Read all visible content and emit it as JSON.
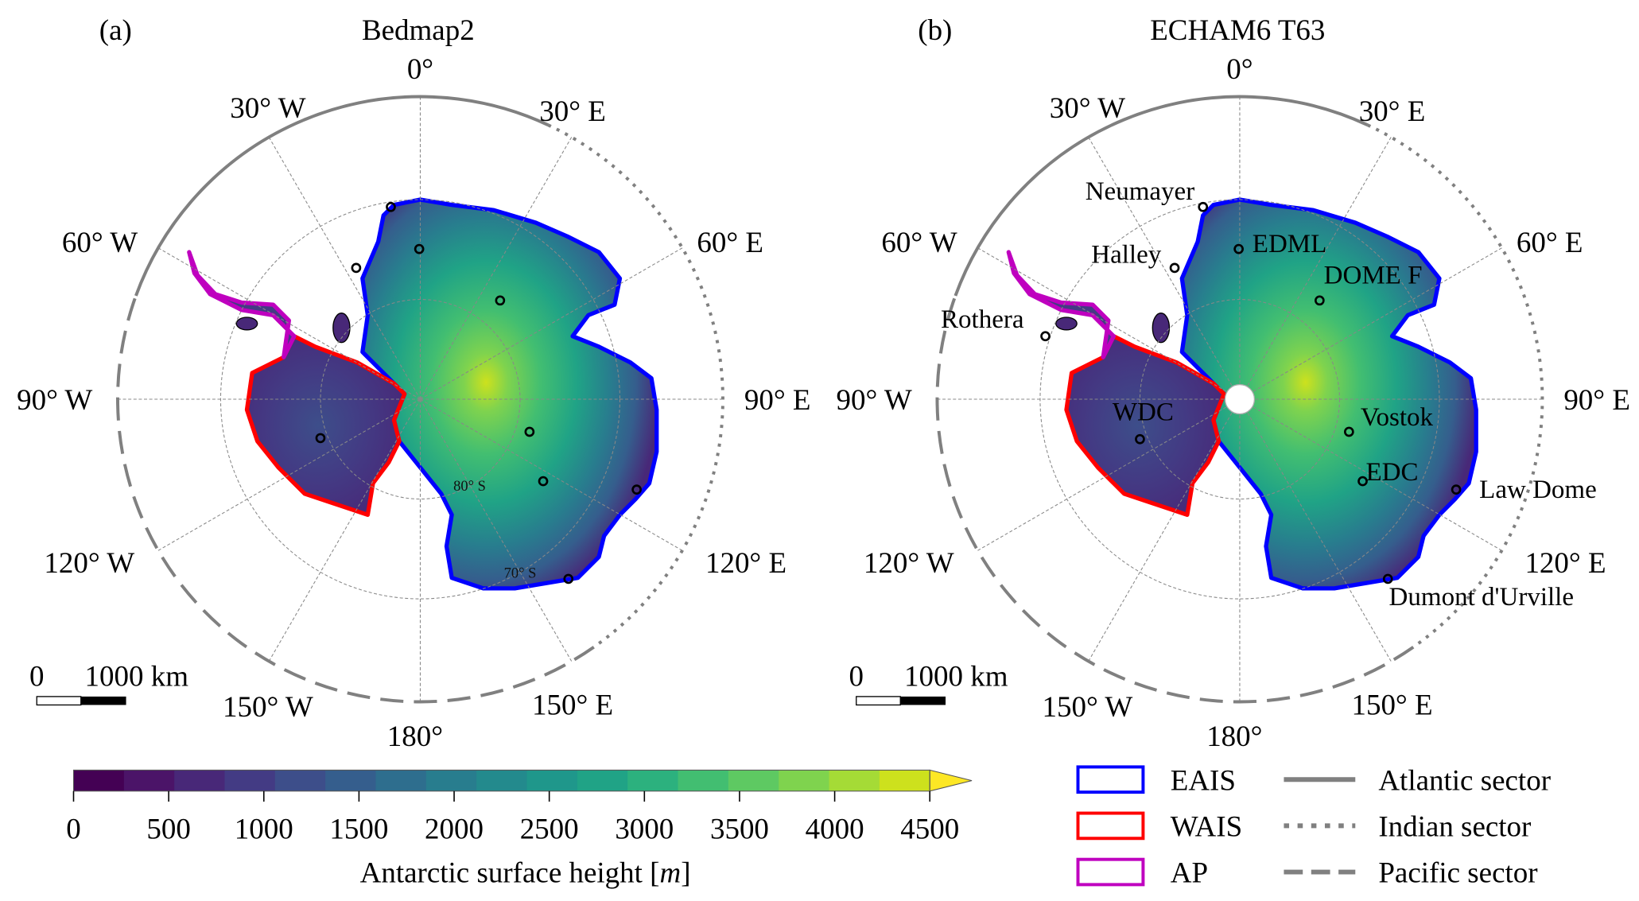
{
  "panels": [
    {
      "letter": "(a)",
      "title": "Bedmap2",
      "station_labels": false
    },
    {
      "letter": "(b)",
      "title": "ECHAM6 T63",
      "station_labels": true
    }
  ],
  "longitude_labels": [
    "0°",
    "30° E",
    "60° E",
    "90° E",
    "120° E",
    "150° E",
    "180°",
    "150° W",
    "120° W",
    "90° W",
    "60° W",
    "30° W"
  ],
  "latitude_labels": [
    "80° S",
    "70° S"
  ],
  "scale_bar": {
    "zero": "0",
    "distance": "1000 km"
  },
  "stations": [
    {
      "name": "Neumayer"
    },
    {
      "name": "Halley"
    },
    {
      "name": "Rothera"
    },
    {
      "name": "WDC"
    },
    {
      "name": "EDML"
    },
    {
      "name": "DOME F"
    },
    {
      "name": "Vostok"
    },
    {
      "name": "EDC"
    },
    {
      "name": "Law Dome"
    },
    {
      "name": "Dumont d'Urville"
    }
  ],
  "colorbar": {
    "label": "Antarctic surface height [m]",
    "label_main": "Antarctic surface height [",
    "label_unit": "m",
    "label_close": "]",
    "ticks": [
      "0",
      "500",
      "1000",
      "1500",
      "2000",
      "2500",
      "3000",
      "3500",
      "4000",
      "4500"
    ],
    "range": [
      0,
      4500
    ],
    "step": 250,
    "extend": "max",
    "colors": [
      "#440154",
      "#4b1468",
      "#482878",
      "#433b84",
      "#3d4e8a",
      "#355e8d",
      "#2e6e8e",
      "#287d8e",
      "#238a8d",
      "#1f978b",
      "#20a386",
      "#2cb17e",
      "#42be71",
      "#5ec962",
      "#7fd34e",
      "#a5db36",
      "#cde11d",
      "#fde725"
    ]
  },
  "legend": {
    "regions": [
      {
        "label": "EAIS",
        "color": "#0000ff"
      },
      {
        "label": "WAIS",
        "color": "#ff0000"
      },
      {
        "label": "AP",
        "color": "#bf00bf"
      }
    ],
    "sectors": [
      {
        "label": "Atlantic sector",
        "style": "solid"
      },
      {
        "label": "Indian sector",
        "style": "dotted"
      },
      {
        "label": "Pacific sector",
        "style": "dashed"
      }
    ],
    "sector_color": "#808080"
  }
}
